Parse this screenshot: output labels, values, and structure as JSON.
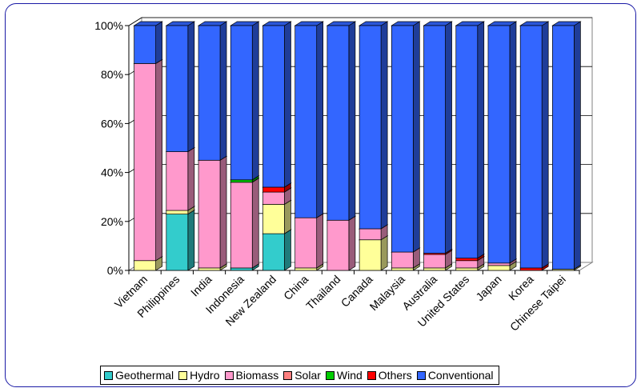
{
  "chart_data": {
    "type": "bar",
    "stacked": true,
    "percent": true,
    "three_d": true,
    "ylim": [
      0,
      100
    ],
    "yticks": [
      0,
      20,
      40,
      60,
      80,
      100
    ],
    "ytick_labels": [
      "0%",
      "20%",
      "40%",
      "60%",
      "80%",
      "100%"
    ],
    "grid": true,
    "legend_position": "bottom",
    "categories": [
      "Vietnam",
      "Philippines",
      "India",
      "Indonesia",
      "New Zealand",
      "China",
      "Thailand",
      "Canada",
      "Malaysia",
      "Australia",
      "United States",
      "Japan",
      "Korea",
      "Chinese Taipei"
    ],
    "series": [
      {
        "name": "Geothermal",
        "color": "#33cccc",
        "values": [
          0,
          23,
          0,
          1,
          15,
          0,
          0,
          0,
          0,
          0,
          0,
          0,
          0,
          0
        ]
      },
      {
        "name": "Hydro",
        "color": "#ffff99",
        "values": [
          4,
          1.5,
          1,
          0,
          12,
          1,
          0,
          12.5,
          1,
          1,
          1,
          2,
          0,
          0.5
        ]
      },
      {
        "name": "Biomass",
        "color": "#ff99cc",
        "values": [
          80.5,
          24,
          44,
          35,
          5,
          20.5,
          20.5,
          4.5,
          6.5,
          5.5,
          3,
          1,
          0,
          0
        ]
      },
      {
        "name": "Solar",
        "color": "#ff8080",
        "values": [
          0,
          0,
          0,
          0,
          0,
          0,
          0,
          0,
          0,
          0,
          0,
          0,
          0,
          0
        ]
      },
      {
        "name": "Wind",
        "color": "#00cc00",
        "values": [
          0,
          0,
          0,
          1,
          0,
          0,
          0,
          0,
          0,
          0,
          0,
          0,
          0,
          0
        ]
      },
      {
        "name": "Others",
        "color": "#ff0000",
        "values": [
          0,
          0,
          0,
          0,
          2,
          0,
          0,
          0,
          0,
          0.5,
          1,
          0,
          1,
          0
        ]
      },
      {
        "name": "Conventional",
        "color": "#3366ff",
        "values": [
          15.5,
          51.5,
          55,
          63,
          66,
          78.5,
          79.5,
          83,
          92.5,
          93,
          95,
          97,
          99,
          99.5
        ]
      }
    ]
  }
}
